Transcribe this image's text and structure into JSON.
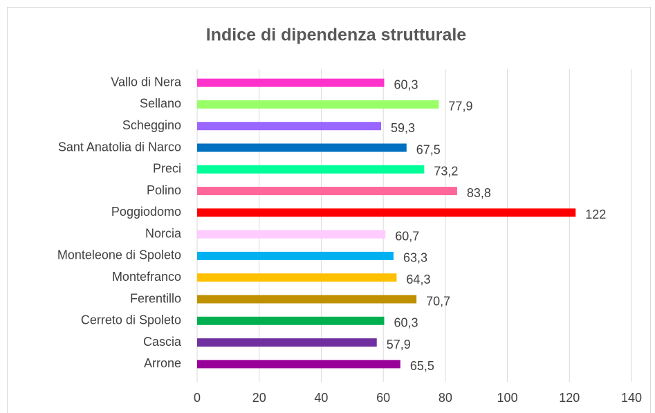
{
  "chart_data": {
    "type": "bar",
    "orientation": "horizontal",
    "title": "Indice di dipendenza strutturale",
    "categories": [
      "Vallo di Nera",
      "Sellano",
      "Scheggino",
      "Sant Anatolia di Narco",
      "Preci",
      "Polino",
      "Poggiodomo",
      "Norcia",
      "Monteleone di Spoleto",
      "Montefranco",
      "Ferentillo",
      "Cerreto di Spoleto",
      "Cascia",
      "Arrone"
    ],
    "values": [
      60.3,
      77.9,
      59.3,
      67.5,
      73.2,
      83.8,
      122,
      60.7,
      63.3,
      64.3,
      70.7,
      60.3,
      57.9,
      65.5
    ],
    "value_labels": [
      "60,3",
      "77,9",
      "59,3",
      "67,5",
      "73,2",
      "83,8",
      "122",
      "60,7",
      "63,3",
      "64,3",
      "70,7",
      "60,3",
      "57,9",
      "65,5"
    ],
    "colors": [
      "#ff33cc",
      "#99ff66",
      "#9966ff",
      "#0070c0",
      "#00ff99",
      "#ff6699",
      "#ff0000",
      "#ffccff",
      "#00b0f0",
      "#ffc000",
      "#bf9000",
      "#00b050",
      "#7030a0",
      "#990099"
    ],
    "xlim": [
      0,
      140
    ],
    "xticks": [
      0,
      20,
      40,
      60,
      80,
      100,
      120,
      140
    ],
    "grid": true
  }
}
